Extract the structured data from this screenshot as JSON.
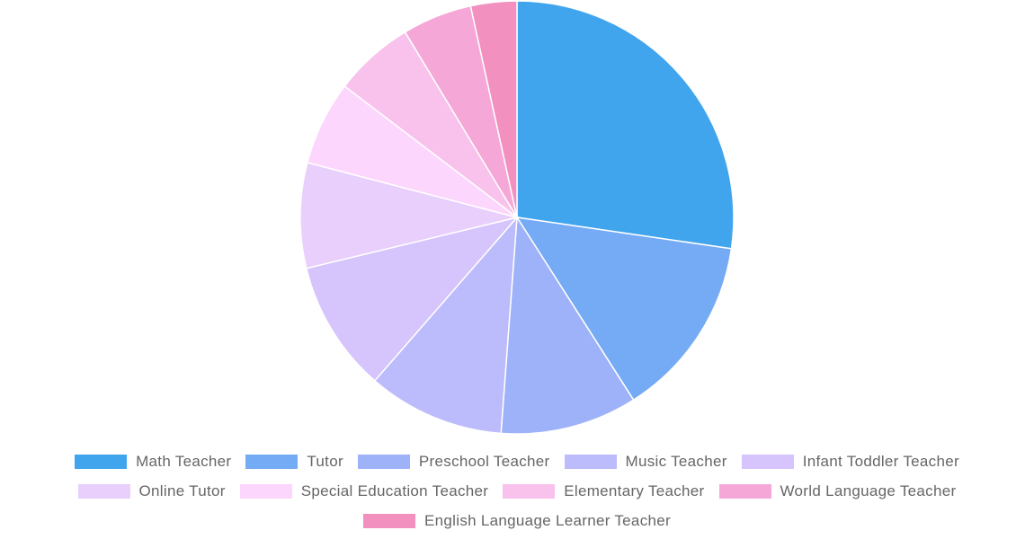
{
  "chart_data": {
    "type": "pie",
    "categories": [
      "Math Teacher",
      "Tutor",
      "Preschool Teacher",
      "Music Teacher",
      "Infant Toddler Teacher",
      "Online Tutor",
      "Special Education Teacher",
      "Elementary Teacher",
      "World Language Teacher",
      "English Language Learner Teacher"
    ],
    "values": [
      27.8,
      13.9,
      10.4,
      10.4,
      10.0,
      8.0,
      6.4,
      6.1,
      5.3,
      3.5
    ],
    "colors": [
      "#41a5ee",
      "#75aaf5",
      "#9db2f8",
      "#bcbbfb",
      "#d6c4fc",
      "#e9cffc",
      "#fdd6fd",
      "#f8c2ec",
      "#f5a8d7",
      "#f290bf"
    ],
    "legend_position": "bottom"
  }
}
